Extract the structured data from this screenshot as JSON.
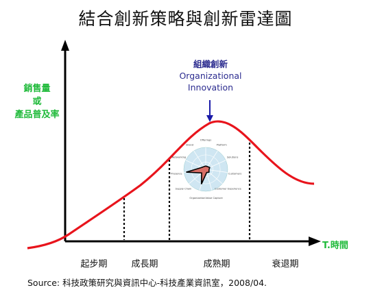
{
  "title": "結合創新策略與創新雷達圖",
  "y_axis_label": [
    "銷售量",
    "或",
    "產品普及率"
  ],
  "x_axis_label": "T.時間",
  "annotation": {
    "zh": "組織創新",
    "en_line1": "Organizational",
    "en_line2": "Innovation"
  },
  "stages": [
    "起步期",
    "成長期",
    "成熟期",
    "衰退期"
  ],
  "source": "Source: 科技政策研究與資訊中心-科技產業資訊室，2008/04.",
  "radar_axes": [
    "Offerings",
    "Platform",
    "Solutions",
    "Customers",
    "Customer Experience",
    "Value Capture",
    "Organization",
    "Supply Chain",
    "Presence",
    "Networking",
    "Brand"
  ],
  "radar_values": [
    0.15,
    0.15,
    0.2,
    0.15,
    0.2,
    0.15,
    0.7,
    0.25,
    0.9,
    0.2,
    0.15
  ],
  "colors": {
    "curve": "#e8141c",
    "axis": "#000000",
    "label_green": "#1fba3a",
    "annotation_blue": "#2b2b8f",
    "radar_fill": "#d86e66",
    "radar_bg": "#cfe6f2"
  }
}
